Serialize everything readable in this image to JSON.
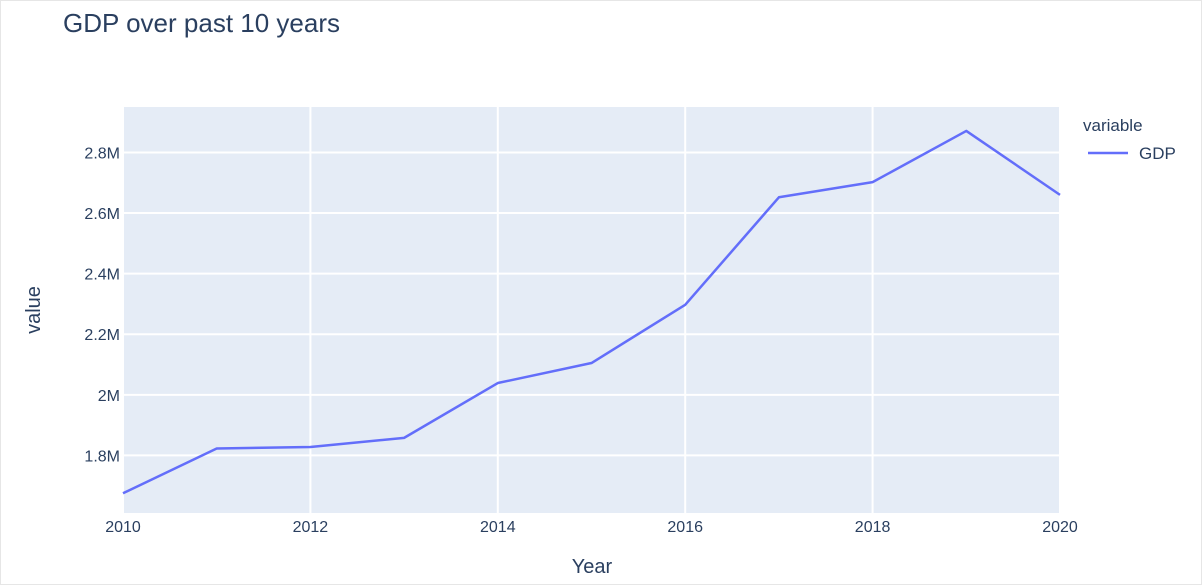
{
  "chart_data": {
    "type": "line",
    "title": "GDP over past 10 years",
    "xlabel": "Year",
    "ylabel": "value",
    "x": [
      2010,
      2011,
      2012,
      2013,
      2014,
      2015,
      2016,
      2017,
      2018,
      2019,
      2020
    ],
    "series": [
      {
        "name": "GDP",
        "values": [
          1675000,
          1823000,
          1828000,
          1858000,
          2039000,
          2105000,
          2297000,
          2652000,
          2702000,
          2871000,
          2660000
        ]
      }
    ],
    "xlim": [
      2010,
      2020
    ],
    "ylim": [
      1610000,
      2950000
    ],
    "x_ticks": [
      2010,
      2012,
      2014,
      2016,
      2018,
      2020
    ],
    "x_tick_labels": [
      "2010",
      "2012",
      "2014",
      "2016",
      "2018",
      "2020"
    ],
    "y_ticks": [
      1800000,
      2000000,
      2200000,
      2400000,
      2600000,
      2800000
    ],
    "y_tick_labels": [
      "1.8M",
      "2M",
      "2.2M",
      "2.4M",
      "2.6M",
      "2.8M"
    ],
    "legend_title": "variable",
    "legend_position": "right",
    "grid": true
  },
  "colors": {
    "plot_background": "#e5ecf6",
    "grid": "#ffffff",
    "line": "#636efa",
    "text": "#2a3f5f"
  }
}
